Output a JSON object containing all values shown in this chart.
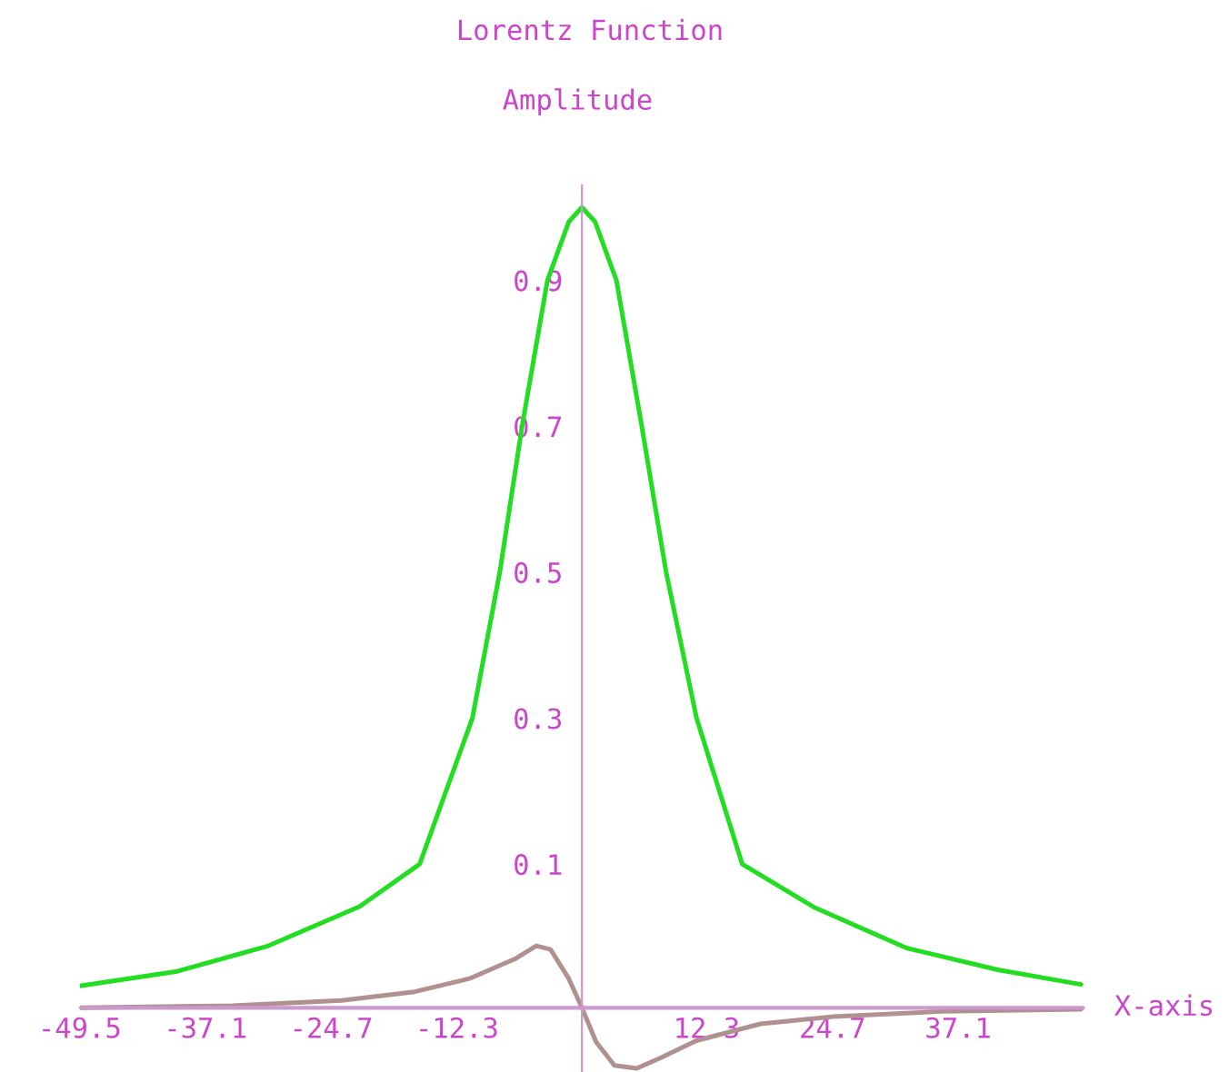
{
  "chart_data": {
    "type": "line",
    "title": "Lorentz Function",
    "ylabel": "Amplitude",
    "xlabel": "X-axis",
    "xlim": [
      -49.5,
      49.5
    ],
    "ylim": [
      -0.185,
      1.03
    ],
    "xticks": [
      -49.5,
      -37.1,
      -24.7,
      -12.3,
      12.3,
      24.7,
      37.1
    ],
    "yticks": [
      0.1,
      0.3,
      0.5,
      0.7,
      0.9
    ],
    "grid": false,
    "legend": false,
    "marker": "none",
    "line_style": "solid",
    "ref_lines": [
      {
        "axis": "y",
        "value": -0.097,
        "color": "#cc99cc"
      }
    ],
    "series": [
      {
        "color": "#22dd22",
        "x": [
          -49.5,
          -39.9,
          -30.9,
          -21.9,
          -16.0,
          -10.8,
          -8.1,
          -5.9,
          -3.4,
          -1.3,
          0,
          1.3,
          3.4,
          5.9,
          8.3,
          11.3,
          15.8,
          23,
          32,
          41,
          49.2
        ],
        "values": [
          -0.067,
          -0.047,
          -0.012,
          0.042,
          0.1,
          0.3,
          0.5,
          0.7,
          0.9,
          0.98,
          1.0,
          0.98,
          0.9,
          0.7,
          0.5,
          0.3,
          0.1,
          0.04,
          -0.015,
          -0.045,
          -0.065
        ]
      },
      {
        "color": "#b09090",
        "x": [
          -49.4,
          -34.5,
          -23.7,
          -16.5,
          -11.1,
          -6.6,
          -4.5,
          -3.1,
          -1.3,
          0,
          1.4,
          3.2,
          5.4,
          7.7,
          11.3,
          17.6,
          24.8,
          35.5,
          49.2
        ],
        "values": [
          -0.097,
          -0.094,
          -0.087,
          -0.075,
          -0.057,
          -0.03,
          -0.012,
          -0.017,
          -0.057,
          -0.097,
          -0.144,
          -0.176,
          -0.18,
          -0.166,
          -0.142,
          -0.119,
          -0.109,
          -0.102,
          -0.099
        ]
      }
    ]
  }
}
